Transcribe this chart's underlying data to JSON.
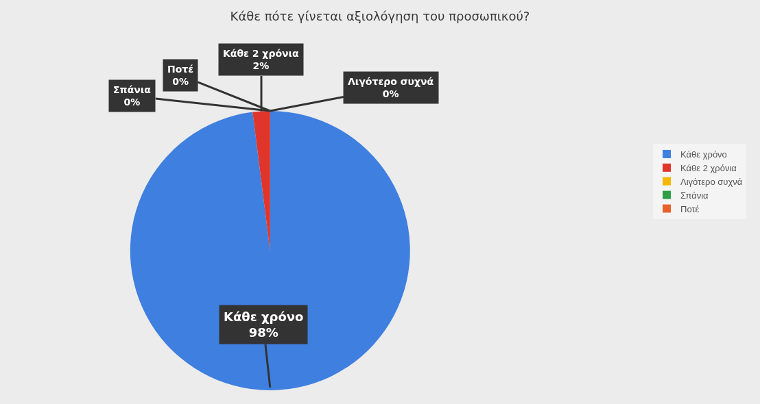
{
  "chart_data": {
    "type": "pie",
    "title": "Κάθε πότε γίνεται αξιολόγηση του προσωπικού?",
    "categories": [
      "Κάθε χρόνο",
      "Κάθε 2 χρόνια",
      "Λιγότερο συχνά",
      "Σπάνια",
      "Ποτέ"
    ],
    "values": [
      98,
      2,
      0,
      0,
      0
    ],
    "value_labels": [
      "98%",
      "2%",
      "0%",
      "0%",
      "0%"
    ],
    "colors": [
      "#3f7fe0",
      "#e0352b",
      "#f5b800",
      "#2f9e46",
      "#e8622c"
    ],
    "legend": "right"
  }
}
